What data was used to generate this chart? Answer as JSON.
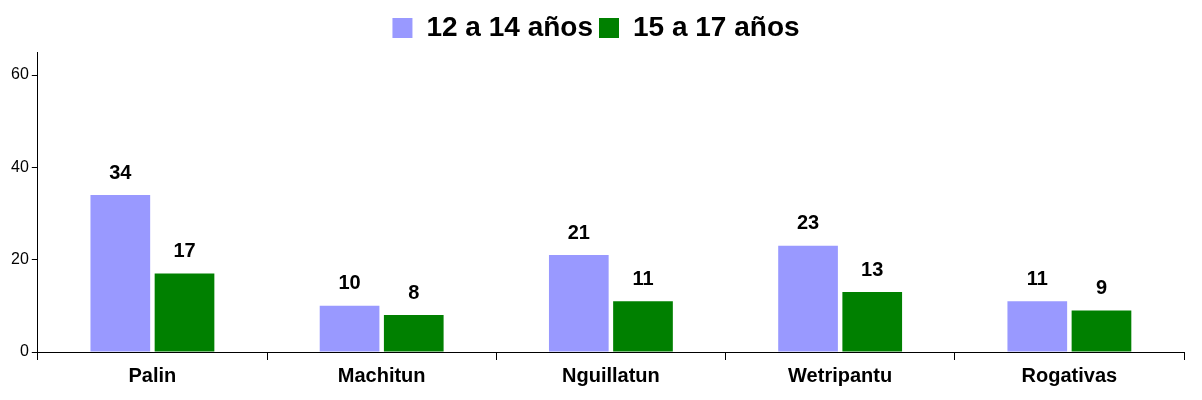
{
  "chart_data": {
    "type": "bar",
    "categories": [
      "Palin",
      "Machitun",
      "Nguillatun",
      "Wetripantu",
      "Rogativas"
    ],
    "series": [
      {
        "name": "12 a 14 años",
        "color": "#9999ff",
        "values": [
          34,
          10,
          21,
          23,
          11
        ]
      },
      {
        "name": "15 a 17 años",
        "color": "#008000",
        "values": [
          17,
          8,
          11,
          13,
          9
        ]
      }
    ],
    "ylim": [
      0,
      65
    ],
    "yticks": [
      0,
      20,
      40,
      60
    ],
    "grid": false,
    "legend": "top",
    "data_labels": true
  }
}
